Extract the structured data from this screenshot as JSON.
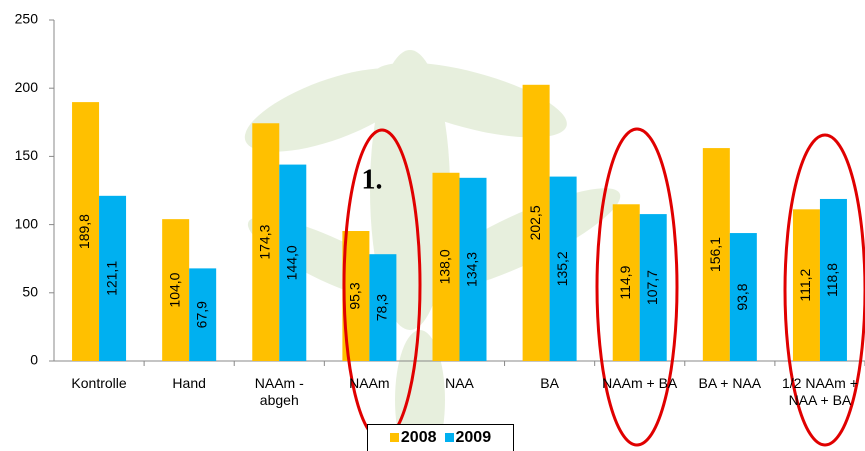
{
  "chart_data": {
    "type": "bar",
    "categories": [
      "Kontrolle",
      "Hand",
      "NAAm -\nabgeh",
      "NAAm",
      "NAA",
      "BA",
      "NAAm + BA",
      "BA + NAA",
      "1/2 NAAm +\nNAA + BA"
    ],
    "series": [
      {
        "name": "2008",
        "color": "#ffc000",
        "values": [
          189.8,
          104.0,
          174.3,
          95.3,
          138.0,
          202.5,
          114.9,
          156.1,
          111.2
        ],
        "value_labels": [
          "189,8",
          "104,0",
          "174,3",
          "95,3",
          "138,0",
          "202,5",
          "114,9",
          "156,1",
          "111,2"
        ]
      },
      {
        "name": "2009",
        "color": "#00b0f0",
        "values": [
          121.1,
          67.9,
          144.0,
          78.3,
          134.3,
          135.2,
          107.7,
          93.8,
          118.8
        ],
        "value_labels": [
          "121,1",
          "67,9",
          "144,0",
          "78,3",
          "134,3",
          "135,2",
          "107,7",
          "93,8",
          "118,8"
        ]
      }
    ],
    "ylim": [
      0,
      250
    ],
    "yticks": [
      0,
      50,
      100,
      150,
      200,
      250
    ],
    "grid": false,
    "legend": "bottom",
    "annotations": [
      "1."
    ]
  }
}
